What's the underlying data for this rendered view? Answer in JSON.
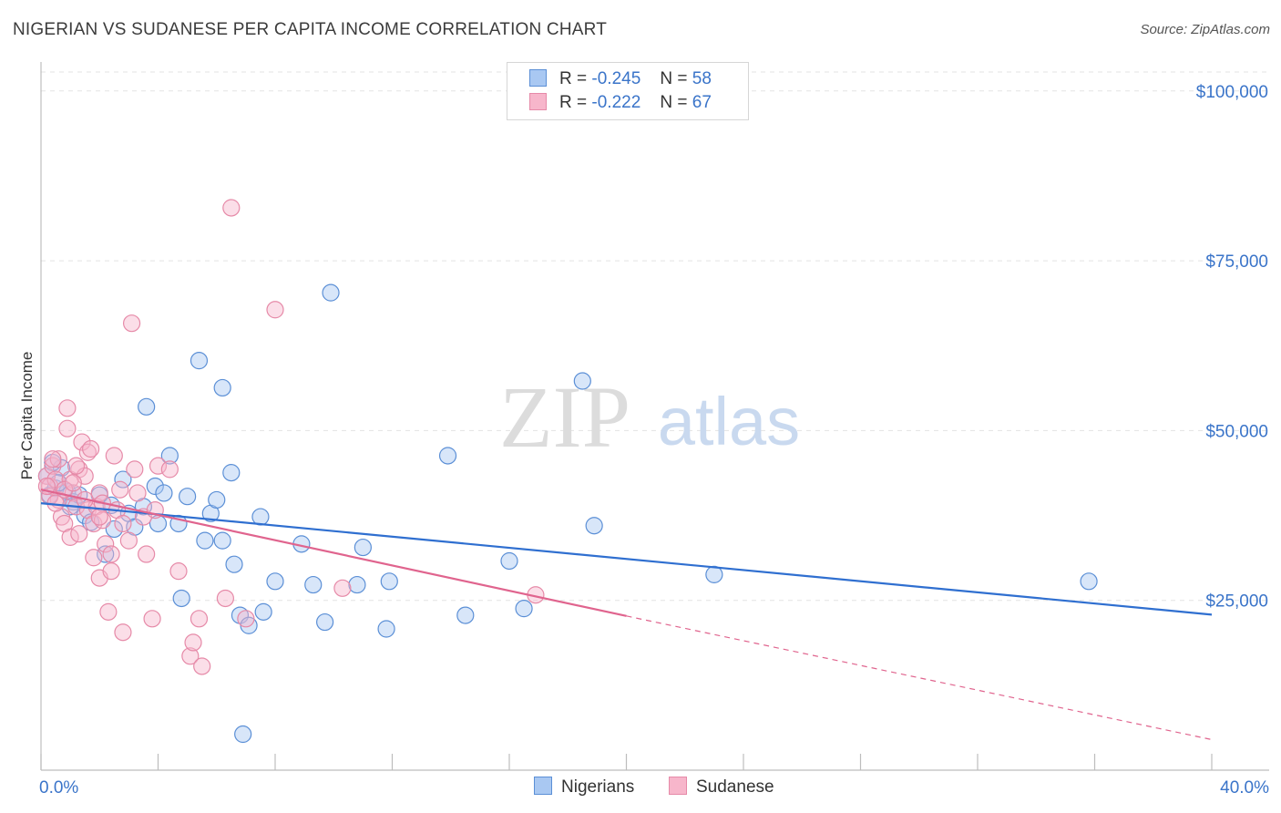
{
  "title": "NIGERIAN VS SUDANESE PER CAPITA INCOME CORRELATION CHART",
  "source": "Source: ZipAtlas.com",
  "watermark": {
    "zip": "ZIP",
    "atlas": "atlas"
  },
  "legend": {
    "rows": [
      {
        "r_label": "R =",
        "r_value": "-0.245",
        "n_label": "N =",
        "n_value": "58"
      },
      {
        "r_label": "R =",
        "r_value": "-0.222",
        "n_label": "N =",
        "n_value": "67"
      }
    ]
  },
  "bottom_legend": [
    "Nigerians",
    "Sudanese"
  ],
  "colors": {
    "nigerians_fill": "#a9c8f2",
    "nigerians_stroke": "#5b8fd6",
    "nigerians_line": "#2f6fd0",
    "sudanese_fill": "#f7b6cb",
    "sudanese_stroke": "#e68aa8",
    "sudanese_line": "#e0648e",
    "tick_label": "#3a74c9",
    "grid": "#e3e3e3"
  },
  "chart_data": {
    "type": "scatter",
    "title": "NIGERIAN VS SUDANESE PER CAPITA INCOME CORRELATION CHART",
    "xlabel": "",
    "ylabel": "Per Capita Income",
    "xlim": [
      0,
      40
    ],
    "ylim": [
      0,
      104000
    ],
    "x_tick_labels": [
      "0.0%",
      "40.0%"
    ],
    "y_ticks": [
      25000,
      50000,
      75000,
      100000
    ],
    "y_tick_labels": [
      "$25,000",
      "$50,000",
      "$75,000",
      "$100,000"
    ],
    "series": [
      {
        "name": "Nigerians",
        "r": -0.245,
        "n": 58,
        "trend": {
          "x0": 0,
          "y0": 39300,
          "x1": 40,
          "y1": 22900
        },
        "points": [
          [
            0.3,
            40500
          ],
          [
            0.5,
            41500
          ],
          [
            0.7,
            44500
          ],
          [
            0.9,
            41000
          ],
          [
            1.1,
            39500
          ],
          [
            1.3,
            40500
          ],
          [
            1.5,
            37500
          ],
          [
            1.7,
            36500
          ],
          [
            2.0,
            40500
          ],
          [
            2.2,
            31800
          ],
          [
            2.5,
            35500
          ],
          [
            2.8,
            42800
          ],
          [
            3.0,
            37800
          ],
          [
            3.2,
            35800
          ],
          [
            3.5,
            38800
          ],
          [
            3.6,
            53500
          ],
          [
            3.9,
            41800
          ],
          [
            4.0,
            36300
          ],
          [
            4.2,
            40800
          ],
          [
            4.4,
            46300
          ],
          [
            4.7,
            36300
          ],
          [
            4.8,
            25300
          ],
          [
            5.0,
            40300
          ],
          [
            5.4,
            60300
          ],
          [
            5.6,
            33800
          ],
          [
            5.8,
            37800
          ],
          [
            6.0,
            39800
          ],
          [
            6.2,
            33800
          ],
          [
            6.2,
            56300
          ],
          [
            6.5,
            43800
          ],
          [
            6.6,
            30300
          ],
          [
            6.8,
            22800
          ],
          [
            6.9,
            5300
          ],
          [
            7.1,
            21300
          ],
          [
            7.5,
            37300
          ],
          [
            7.6,
            23300
          ],
          [
            8.0,
            27800
          ],
          [
            8.9,
            33300
          ],
          [
            9.3,
            27300
          ],
          [
            9.7,
            21800
          ],
          [
            9.9,
            70300
          ],
          [
            10.8,
            27300
          ],
          [
            11.0,
            32800
          ],
          [
            11.8,
            20800
          ],
          [
            11.9,
            27800
          ],
          [
            13.9,
            46300
          ],
          [
            14.5,
            22800
          ],
          [
            16.0,
            30800
          ],
          [
            16.5,
            23800
          ],
          [
            18.5,
            57300
          ],
          [
            18.9,
            36000
          ],
          [
            23.0,
            28800
          ],
          [
            35.8,
            27800
          ],
          [
            0.2,
            43300
          ],
          [
            0.4,
            45300
          ],
          [
            0.6,
            42300
          ],
          [
            1.0,
            38800
          ],
          [
            2.4,
            39000
          ]
        ]
      },
      {
        "name": "Sudanese",
        "r": -0.222,
        "n": 67,
        "trend": {
          "x0": 0,
          "y0": 41300,
          "x1": 20,
          "y1": 22700,
          "dash_to_x": 40,
          "dash_to_y": 4500
        },
        "points": [
          [
            0.2,
            43300
          ],
          [
            0.3,
            41800
          ],
          [
            0.4,
            44800
          ],
          [
            0.5,
            42800
          ],
          [
            0.6,
            39800
          ],
          [
            0.6,
            45800
          ],
          [
            0.7,
            37300
          ],
          [
            0.8,
            36300
          ],
          [
            0.9,
            53300
          ],
          [
            0.9,
            50300
          ],
          [
            1.0,
            42800
          ],
          [
            1.0,
            34300
          ],
          [
            1.1,
            40800
          ],
          [
            1.2,
            38800
          ],
          [
            1.3,
            44300
          ],
          [
            1.3,
            34800
          ],
          [
            1.4,
            48300
          ],
          [
            1.5,
            43300
          ],
          [
            1.6,
            46800
          ],
          [
            1.6,
            38300
          ],
          [
            1.7,
            47300
          ],
          [
            1.8,
            31300
          ],
          [
            1.8,
            36300
          ],
          [
            1.9,
            38800
          ],
          [
            2.0,
            40800
          ],
          [
            2.0,
            28300
          ],
          [
            2.1,
            39300
          ],
          [
            2.1,
            36800
          ],
          [
            2.2,
            33300
          ],
          [
            2.3,
            23300
          ],
          [
            2.4,
            29300
          ],
          [
            2.4,
            31800
          ],
          [
            2.5,
            46300
          ],
          [
            2.6,
            38300
          ],
          [
            2.7,
            41300
          ],
          [
            2.8,
            36300
          ],
          [
            2.8,
            20300
          ],
          [
            3.0,
            33800
          ],
          [
            3.1,
            65800
          ],
          [
            3.2,
            44300
          ],
          [
            3.3,
            40800
          ],
          [
            3.5,
            37300
          ],
          [
            3.6,
            31800
          ],
          [
            3.8,
            22300
          ],
          [
            3.9,
            38300
          ],
          [
            4.0,
            44800
          ],
          [
            4.4,
            44300
          ],
          [
            4.7,
            29300
          ],
          [
            5.1,
            16800
          ],
          [
            5.2,
            18800
          ],
          [
            5.4,
            22300
          ],
          [
            5.5,
            15300
          ],
          [
            6.3,
            25300
          ],
          [
            6.5,
            82800
          ],
          [
            7.0,
            22300
          ],
          [
            8.0,
            67800
          ],
          [
            10.3,
            26800
          ],
          [
            16.9,
            25800
          ],
          [
            0.3,
            40300
          ],
          [
            0.5,
            39300
          ],
          [
            0.8,
            41300
          ],
          [
            1.1,
            42300
          ],
          [
            1.5,
            39800
          ],
          [
            2.0,
            37300
          ],
          [
            0.4,
            45800
          ],
          [
            0.2,
            41800
          ],
          [
            1.2,
            44800
          ]
        ]
      }
    ]
  }
}
